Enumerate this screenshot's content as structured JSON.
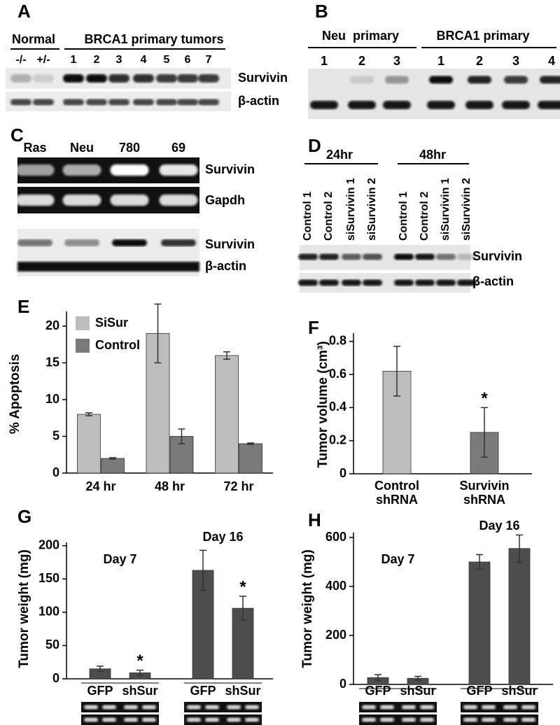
{
  "blots": {
    "A": {
      "panel": "A",
      "groups": [
        "Normal",
        "BRCA1 primary tumors"
      ],
      "lanes": [
        "-/-",
        "+/-",
        "1",
        "2",
        "3",
        "4",
        "5",
        "6",
        "7"
      ],
      "rows": [
        "Survivin",
        "β-actin"
      ]
    },
    "B": {
      "panel": "B",
      "groups": [
        "Neu  primary",
        "BRCA1 primary"
      ],
      "lanes": [
        "1",
        "2",
        "3",
        "1",
        "2",
        "3",
        "4"
      ]
    },
    "C": {
      "panel": "C",
      "lanes": [
        "Ras",
        "Neu",
        "780",
        "69"
      ],
      "rows": [
        "Survivin",
        "Gapdh",
        "Survivin",
        "β-actin"
      ]
    },
    "D": {
      "panel": "D",
      "groups": [
        "24hr",
        "48hr"
      ],
      "lanes": [
        "Control 1",
        "Control 2",
        "siSurvivin 1",
        "siSurvivin 2",
        "Control 1",
        "Control 2",
        "siSurvivin 1",
        "siSurvivin 2"
      ],
      "rows": [
        "Survivin",
        "β-actin"
      ]
    }
  },
  "chart_data": [
    {
      "type": "bar",
      "panel": "E",
      "y_label": "% Apoptosis",
      "categories": [
        "24 hr",
        "48 hr",
        "72 hr"
      ],
      "series": [
        {
          "name": "SiSur",
          "color": "#bdbdbd",
          "values": [
            8,
            19,
            16
          ],
          "errors": [
            0.2,
            4,
            0.5
          ]
        },
        {
          "name": "Control",
          "color": "#7a7a7a",
          "values": [
            2,
            5,
            4
          ],
          "errors": [
            0.1,
            1,
            0.1
          ]
        }
      ],
      "ylim": [
        0,
        22
      ],
      "yticks": [
        0,
        5,
        10,
        15,
        20
      ]
    },
    {
      "type": "bar",
      "panel": "F",
      "y_label": "Tumor volume (cm³)",
      "categories": [
        "Control shRNA",
        "Survivin shRNA"
      ],
      "values": [
        0.62,
        0.25
      ],
      "errors": [
        0.15,
        0.15
      ],
      "colors": [
        "#bdbdbd",
        "#7a7a7a"
      ],
      "markers": [
        null,
        "*"
      ],
      "ylim": [
        0,
        0.85
      ],
      "yticks": [
        0,
        0.2,
        0.4,
        0.6,
        0.8
      ]
    },
    {
      "type": "bar",
      "panel": "G",
      "y_label": "Tumor weight (mg)",
      "categories": [
        "GFP",
        "shSur",
        "GFP",
        "shSur"
      ],
      "groups": [
        "Day 7",
        "Day 16"
      ],
      "values": [
        15,
        9,
        163,
        106
      ],
      "errors": [
        4,
        4,
        30,
        18
      ],
      "color": "#4d4d4d",
      "markers": [
        null,
        "*",
        null,
        "*"
      ],
      "ylim": [
        0,
        205
      ],
      "yticks": [
        0,
        50,
        100,
        150,
        200
      ]
    },
    {
      "type": "bar",
      "panel": "H",
      "y_label": "Tumor weight (mg)",
      "categories": [
        "GFP",
        "shSur",
        "GFP",
        "shSur"
      ],
      "groups": [
        "Day 7",
        "Day 16"
      ],
      "values": [
        28,
        25,
        500,
        555
      ],
      "errors": [
        12,
        8,
        30,
        55
      ],
      "color": "#4d4d4d",
      "ylim": [
        0,
        620
      ],
      "yticks": [
        0,
        200,
        400,
        600
      ]
    }
  ]
}
